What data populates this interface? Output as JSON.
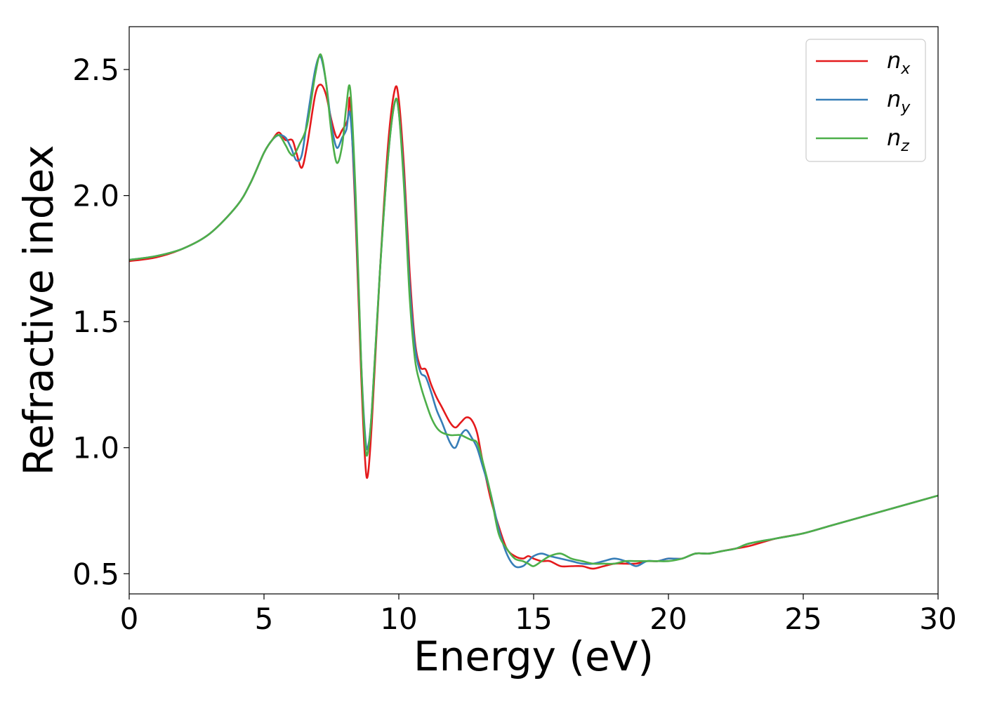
{
  "chart_data": {
    "type": "line",
    "title": "",
    "xlabel": "Energy (eV)",
    "ylabel": "Refractive index",
    "xlim": [
      0,
      30
    ],
    "ylim": [
      0.42,
      2.67
    ],
    "xticks": [
      0,
      5,
      10,
      15,
      20,
      25,
      30
    ],
    "xtick_labels": [
      "0",
      "5",
      "10",
      "15",
      "20",
      "25",
      "30"
    ],
    "yticks": [
      0.5,
      1.0,
      1.5,
      2.0,
      2.5
    ],
    "ytick_labels": [
      "0.5",
      "1.0",
      "1.5",
      "2.0",
      "2.5"
    ],
    "grid": false,
    "legend_position": "top-right",
    "series": [
      {
        "name": "n_x",
        "legend_base": "n",
        "legend_sub": "x",
        "color": "#e41a1c",
        "x": [
          0,
          1,
          2,
          3,
          4,
          4.5,
          5,
          5.3,
          5.55,
          5.8,
          6.05,
          6.2,
          6.4,
          6.6,
          6.9,
          7.1,
          7.3,
          7.5,
          7.7,
          7.9,
          8.1,
          8.2,
          8.4,
          8.6,
          8.75,
          8.85,
          9.0,
          9.3,
          9.6,
          9.85,
          10.0,
          10.2,
          10.4,
          10.6,
          10.8,
          11.0,
          11.2,
          11.4,
          11.6,
          11.9,
          12.1,
          12.3,
          12.5,
          12.7,
          12.9,
          13.1,
          13.4,
          13.7,
          14.0,
          14.3,
          14.6,
          14.8,
          15.0,
          15.3,
          15.6,
          16.0,
          16.4,
          16.8,
          17.2,
          17.6,
          18.0,
          18.4,
          18.8,
          19.2,
          19.6,
          20.0,
          20.5,
          21.0,
          21.5,
          22.0,
          22.5,
          23.0,
          24.0,
          25.0,
          26.0,
          27.0,
          28.0,
          29.0,
          30.0
        ],
        "y": [
          1.74,
          1.755,
          1.79,
          1.85,
          1.96,
          2.05,
          2.17,
          2.22,
          2.25,
          2.22,
          2.22,
          2.17,
          2.11,
          2.2,
          2.4,
          2.44,
          2.4,
          2.3,
          2.23,
          2.26,
          2.3,
          2.37,
          1.9,
          1.3,
          0.95,
          0.89,
          1.1,
          1.7,
          2.2,
          2.42,
          2.38,
          2.1,
          1.7,
          1.42,
          1.32,
          1.31,
          1.25,
          1.2,
          1.16,
          1.1,
          1.08,
          1.1,
          1.12,
          1.11,
          1.06,
          0.95,
          0.8,
          0.69,
          0.6,
          0.57,
          0.56,
          0.57,
          0.56,
          0.55,
          0.55,
          0.53,
          0.53,
          0.53,
          0.52,
          0.53,
          0.54,
          0.54,
          0.54,
          0.55,
          0.55,
          0.56,
          0.56,
          0.58,
          0.58,
          0.59,
          0.6,
          0.61,
          0.64,
          0.66,
          0.69,
          0.72,
          0.75,
          0.78,
          0.81
        ]
      },
      {
        "name": "n_y",
        "legend_base": "n",
        "legend_sub": "y",
        "color": "#377eb8",
        "x": [
          0,
          1,
          2,
          3,
          4,
          4.5,
          5,
          5.3,
          5.55,
          5.8,
          6.0,
          6.2,
          6.4,
          6.6,
          6.9,
          7.1,
          7.3,
          7.5,
          7.7,
          7.9,
          8.05,
          8.2,
          8.4,
          8.6,
          8.75,
          8.85,
          9.0,
          9.3,
          9.6,
          9.85,
          10.0,
          10.2,
          10.4,
          10.6,
          10.8,
          11.0,
          11.2,
          11.4,
          11.6,
          11.9,
          12.1,
          12.3,
          12.5,
          12.7,
          12.9,
          13.1,
          13.4,
          13.7,
          14.0,
          14.3,
          14.6,
          14.8,
          15.0,
          15.3,
          15.6,
          16.0,
          16.4,
          16.8,
          17.2,
          17.6,
          18.0,
          18.4,
          18.8,
          19.2,
          19.6,
          20.0,
          20.5,
          21.0,
          21.5,
          22.0,
          22.5,
          23.0,
          24.0,
          25.0,
          26.0,
          27.0,
          28.0,
          29.0,
          30.0
        ],
        "y": [
          1.745,
          1.76,
          1.79,
          1.85,
          1.96,
          2.05,
          2.17,
          2.22,
          2.24,
          2.23,
          2.19,
          2.14,
          2.16,
          2.3,
          2.5,
          2.55,
          2.45,
          2.28,
          2.19,
          2.23,
          2.26,
          2.32,
          1.95,
          1.35,
          1.05,
          1.0,
          1.15,
          1.7,
          2.15,
          2.37,
          2.33,
          2.05,
          1.65,
          1.4,
          1.3,
          1.28,
          1.22,
          1.15,
          1.1,
          1.02,
          1.0,
          1.05,
          1.07,
          1.04,
          1.0,
          0.93,
          0.82,
          0.68,
          0.58,
          0.53,
          0.53,
          0.55,
          0.57,
          0.58,
          0.57,
          0.56,
          0.55,
          0.54,
          0.54,
          0.55,
          0.56,
          0.55,
          0.53,
          0.55,
          0.55,
          0.56,
          0.56,
          0.58,
          0.58,
          0.59,
          0.6,
          0.62,
          0.64,
          0.66,
          0.69,
          0.72,
          0.75,
          0.78,
          0.81
        ]
      },
      {
        "name": "n_z",
        "legend_base": "n",
        "legend_sub": "z",
        "color": "#4daf4a",
        "x": [
          0,
          1,
          2,
          3,
          4,
          4.5,
          5,
          5.3,
          5.55,
          5.8,
          5.95,
          6.1,
          6.3,
          6.6,
          6.9,
          7.1,
          7.3,
          7.5,
          7.7,
          7.9,
          8.05,
          8.2,
          8.4,
          8.6,
          8.75,
          8.85,
          9.0,
          9.3,
          9.6,
          9.85,
          10.0,
          10.2,
          10.4,
          10.6,
          10.8,
          11.0,
          11.2,
          11.4,
          11.6,
          11.9,
          12.1,
          12.3,
          12.5,
          12.7,
          12.9,
          13.1,
          13.4,
          13.7,
          14.0,
          14.3,
          14.6,
          14.8,
          15.0,
          15.3,
          15.6,
          16.0,
          16.4,
          16.8,
          17.2,
          17.6,
          18.0,
          18.4,
          18.8,
          19.2,
          19.6,
          20.0,
          20.5,
          21.0,
          21.5,
          22.0,
          22.5,
          23.0,
          24.0,
          25.0,
          26.0,
          27.0,
          28.0,
          29.0,
          30.0
        ],
        "y": [
          1.745,
          1.76,
          1.79,
          1.85,
          1.96,
          2.05,
          2.17,
          2.22,
          2.24,
          2.2,
          2.17,
          2.16,
          2.2,
          2.28,
          2.48,
          2.56,
          2.45,
          2.25,
          2.13,
          2.2,
          2.35,
          2.42,
          2.0,
          1.35,
          1.02,
          0.98,
          1.15,
          1.7,
          2.15,
          2.37,
          2.33,
          2.02,
          1.6,
          1.35,
          1.25,
          1.18,
          1.12,
          1.08,
          1.06,
          1.05,
          1.05,
          1.05,
          1.04,
          1.03,
          1.02,
          0.95,
          0.82,
          0.66,
          0.6,
          0.56,
          0.55,
          0.54,
          0.53,
          0.55,
          0.57,
          0.58,
          0.56,
          0.55,
          0.54,
          0.54,
          0.54,
          0.55,
          0.55,
          0.55,
          0.55,
          0.55,
          0.56,
          0.58,
          0.58,
          0.59,
          0.6,
          0.62,
          0.64,
          0.66,
          0.69,
          0.72,
          0.75,
          0.78,
          0.81
        ]
      }
    ]
  }
}
